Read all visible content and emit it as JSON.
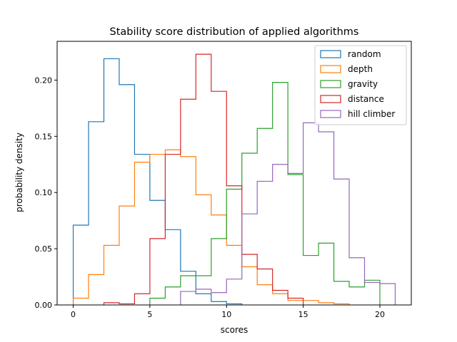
{
  "chart_data": {
    "type": "histogram",
    "title": "Stability score distribution of applied algorithms",
    "xlabel": "scores",
    "ylabel": "probability density",
    "xlim": [
      -1.05,
      22.05
    ],
    "ylim": [
      0,
      0.2345
    ],
    "xticks": [
      0,
      5,
      10,
      15,
      20
    ],
    "yticks": [
      0.0,
      0.05,
      0.1,
      0.15,
      0.2
    ],
    "ytick_labels": [
      "0.00",
      "0.05",
      "0.10",
      "0.15",
      "0.20"
    ],
    "grid": false,
    "legend_position": "top-right",
    "series": [
      {
        "name": "random",
        "color": "#1f77b4",
        "bin_edges": [
          0,
          1,
          2,
          3,
          4,
          5,
          6,
          7,
          8,
          9,
          10,
          11
        ],
        "values": [
          0.071,
          0.163,
          0.219,
          0.196,
          0.134,
          0.093,
          0.067,
          0.03,
          0.01,
          0.003,
          0.001
        ]
      },
      {
        "name": "depth",
        "color": "#ff7f0e",
        "bin_edges": [
          0,
          1,
          2,
          3,
          4,
          5,
          6,
          7,
          8,
          9,
          10,
          11,
          12,
          13,
          14,
          15,
          16,
          17,
          18
        ],
        "values": [
          0.006,
          0.027,
          0.053,
          0.088,
          0.127,
          0.134,
          0.138,
          0.132,
          0.098,
          0.08,
          0.053,
          0.034,
          0.018,
          0.01,
          0.004,
          0.004,
          0.002,
          0.001
        ]
      },
      {
        "name": "gravity",
        "color": "#2ca02c",
        "bin_edges": [
          5,
          6,
          7,
          8,
          9,
          10,
          11,
          12,
          13,
          14,
          15,
          16,
          17,
          18,
          19,
          20
        ],
        "values": [
          0.006,
          0.016,
          0.026,
          0.026,
          0.059,
          0.103,
          0.135,
          0.157,
          0.198,
          0.116,
          0.044,
          0.055,
          0.021,
          0.016,
          0.022
        ]
      },
      {
        "name": "distance",
        "color": "#d62728",
        "bin_edges": [
          2,
          3,
          4,
          5,
          6,
          7,
          8,
          9,
          10,
          11,
          12,
          13,
          14,
          15
        ],
        "values": [
          0.002,
          0.001,
          0.01,
          0.059,
          0.134,
          0.183,
          0.223,
          0.19,
          0.106,
          0.045,
          0.032,
          0.013,
          0.006
        ]
      },
      {
        "name": "hill climber",
        "color": "#9467bd",
        "bin_edges": [
          7,
          8,
          9,
          10,
          11,
          12,
          13,
          14,
          15,
          16,
          17,
          18,
          19,
          20,
          21
        ],
        "values": [
          0.012,
          0.014,
          0.011,
          0.023,
          0.081,
          0.11,
          0.125,
          0.117,
          0.162,
          0.154,
          0.112,
          0.042,
          0.02,
          0.019
        ]
      }
    ]
  }
}
